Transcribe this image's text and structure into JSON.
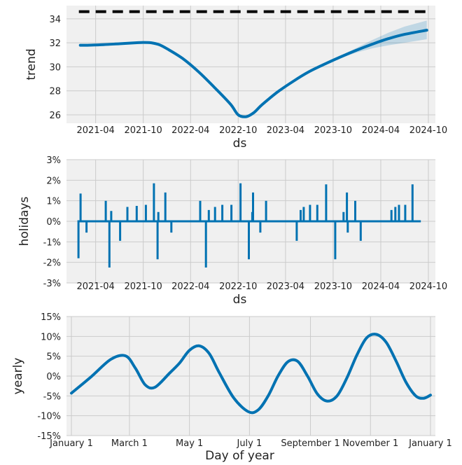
{
  "chart_data": [
    {
      "type": "line",
      "ylabel": "trend",
      "xlabel": "ds",
      "ylim": [
        25.3,
        35.1
      ],
      "xlim": [
        "2020-12-10",
        "2024-10-28"
      ],
      "grid": true,
      "yticks": [
        26,
        28,
        30,
        32,
        34
      ],
      "xticks": [
        "2021-04",
        "2021-10",
        "2022-04",
        "2022-10",
        "2023-04",
        "2023-10",
        "2024-04",
        "2024-10"
      ],
      "cap": 34.6,
      "series": [
        {
          "x": [
            "2021-02-01",
            "2021-03-01",
            "2021-05-01",
            "2021-07-01",
            "2021-09-01",
            "2021-10-01",
            "2021-11-01",
            "2021-12-01",
            "2022-01-01",
            "2022-03-01",
            "2022-05-01",
            "2022-07-01",
            "2022-09-01",
            "2022-10-01",
            "2022-11-01",
            "2022-12-01",
            "2023-01-01",
            "2023-03-01",
            "2023-05-01",
            "2023-07-01",
            "2023-09-01",
            "2023-11-01",
            "2024-01-01",
            "2024-03-01",
            "2024-05-01",
            "2024-07-01",
            "2024-09-25"
          ],
          "values": [
            31.8,
            31.8,
            31.85,
            31.92,
            32.0,
            32.03,
            32.0,
            31.85,
            31.5,
            30.7,
            29.6,
            28.3,
            26.9,
            26.0,
            25.85,
            26.2,
            26.85,
            27.9,
            28.8,
            29.6,
            30.25,
            30.85,
            31.4,
            31.9,
            32.35,
            32.7,
            33.05
          ]
        }
      ],
      "uncertainty": {
        "x": [
          "2023-09-01",
          "2023-11-01",
          "2024-01-01",
          "2024-03-01",
          "2024-05-01",
          "2024-07-01",
          "2024-09-25"
        ],
        "lower": [
          30.2,
          30.75,
          31.2,
          31.55,
          31.8,
          32.0,
          32.3
        ],
        "upper": [
          30.3,
          30.95,
          31.6,
          32.25,
          32.85,
          33.35,
          33.85
        ]
      }
    },
    {
      "type": "line",
      "ylabel": "holidays",
      "xlabel": "ds",
      "ylim": [
        -3,
        3
      ],
      "xlim": [
        "2020-12-10",
        "2024-10-28"
      ],
      "grid": true,
      "yticks": [
        "-3%",
        "-2%",
        "-1%",
        "0%",
        "1%",
        "2%",
        "3%"
      ],
      "xticks": [
        "2021-04",
        "2021-10",
        "2022-04",
        "2022-10",
        "2023-04",
        "2023-10",
        "2024-04",
        "2024-10"
      ],
      "series": [
        {
          "x": [
            "2021-01-25",
            "2021-02-02",
            "2021-02-10",
            "2021-02-25",
            "2021-05-10",
            "2021-05-24",
            "2021-05-31",
            "2021-07-04",
            "2021-08-01",
            "2021-09-06",
            "2021-10-11",
            "2021-11-11",
            "2021-11-25",
            "2021-11-28",
            "2021-12-25",
            "2022-01-17",
            "2022-05-08",
            "2022-05-30",
            "2022-06-10",
            "2022-07-04",
            "2022-08-01",
            "2022-09-05",
            "2022-10-10",
            "2022-11-11",
            "2022-11-24",
            "2022-11-27",
            "2022-12-25",
            "2023-01-16",
            "2023-05-14",
            "2023-05-29",
            "2023-06-10",
            "2023-07-04",
            "2023-08-01",
            "2023-09-04",
            "2023-10-09",
            "2023-11-10",
            "2023-11-23",
            "2023-11-26",
            "2023-12-25",
            "2024-01-15",
            "2024-05-12",
            "2024-05-27",
            "2024-06-10",
            "2024-07-04",
            "2024-08-01",
            "2024-09-02"
          ],
          "values": [
            -1.8,
            1.35,
            0.0,
            -0.55,
            1.0,
            -2.25,
            0.5,
            -0.95,
            0.7,
            0.75,
            0.8,
            1.85,
            -1.85,
            0.45,
            1.4,
            -0.55,
            1.0,
            -2.25,
            0.55,
            0.7,
            0.8,
            0.8,
            1.85,
            -1.85,
            0.45,
            1.4,
            -0.55,
            1.0,
            -0.95,
            0.55,
            0.7,
            0.8,
            0.8,
            1.8,
            -1.85,
            0.45,
            1.4,
            -0.55,
            1.0,
            -0.95,
            0.55,
            0.7,
            0.8,
            0.8,
            1.8,
            0.0
          ]
        }
      ]
    },
    {
      "type": "line",
      "ylabel": "yearly",
      "xlabel": "Day of year",
      "ylim": [
        -15,
        15
      ],
      "grid": true,
      "yticks": [
        "-15%",
        "-10%",
        "-5%",
        "0%",
        "5%",
        "10%",
        "15%"
      ],
      "xticks": [
        "January 1",
        "March 1",
        "May 1",
        "July 1",
        "September 1",
        "November 1",
        "January 1"
      ],
      "series": [
        {
          "x": [
            0,
            20,
            40,
            55,
            65,
            75,
            85,
            100,
            110,
            120,
            130,
            140,
            150,
            165,
            180,
            190,
            200,
            210,
            220,
            230,
            240,
            250,
            260,
            270,
            280,
            290,
            300,
            310,
            320,
            330,
            340,
            350,
            358,
            365
          ],
          "values": [
            -4.3,
            -0.2,
            4.2,
            5.1,
            2.0,
            -2.2,
            -2.8,
            0.8,
            3.3,
            6.5,
            7.6,
            5.7,
            1.0,
            -5.5,
            -9.0,
            -8.5,
            -5.0,
            0.0,
            3.6,
            3.7,
            0.0,
            -4.5,
            -6.3,
            -5.0,
            -0.5,
            5.2,
            9.6,
            10.5,
            8.5,
            3.8,
            -1.5,
            -5.0,
            -5.6,
            -4.8
          ]
        }
      ]
    }
  ]
}
